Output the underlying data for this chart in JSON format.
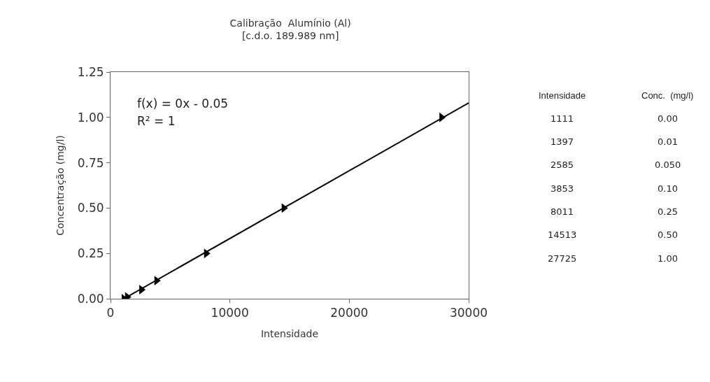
{
  "chart_data": {
    "type": "scatter",
    "title": "Calibração  Alumínio (Al)",
    "subtitle": "[c.d.o. 189.989 nm]",
    "xlabel": "Intensidade",
    "ylabel": "Concentração (mg/l)",
    "series": [
      {
        "color": "#000000",
        "marker": "triangle",
        "x": [
          1111,
          1397,
          2585,
          3853,
          8011,
          14513,
          27725
        ],
        "values": [
          0.0,
          0.01,
          0.05,
          0.1,
          0.25,
          0.5,
          1.0
        ]
      },
      {
        "type": "line",
        "color": "#000000",
        "marker": "none",
        "line_style": "solid",
        "x": [
          1111,
          30000
        ],
        "values": [
          0.0,
          1.08
        ]
      }
    ],
    "annotations": [
      "f(x) = 0x - 0.05",
      "R² = 1",
      "Intensidade",
      "Conc.  (mg/l)",
      "1111",
      "0.00",
      "1397",
      "0.01",
      "2585",
      "0.050",
      "3853",
      "0.10",
      "8011",
      "0.25",
      "14513",
      "0.50",
      "27725",
      "1.00"
    ],
    "xlim": [
      0,
      30000
    ],
    "xticks": [
      0,
      10000,
      20000,
      30000
    ],
    "ylim": [
      0,
      1.25
    ],
    "yticks": [
      {
        "value": 0,
        "label": "0.00"
      },
      {
        "value": 0.25,
        "label": "0.25"
      },
      {
        "value": 0.5,
        "label": "0.50"
      },
      {
        "value": 0.75,
        "label": "0.75"
      },
      {
        "value": 1.0,
        "label": "1.00"
      },
      {
        "value": 1.25,
        "label": "1.25"
      }
    ]
  }
}
